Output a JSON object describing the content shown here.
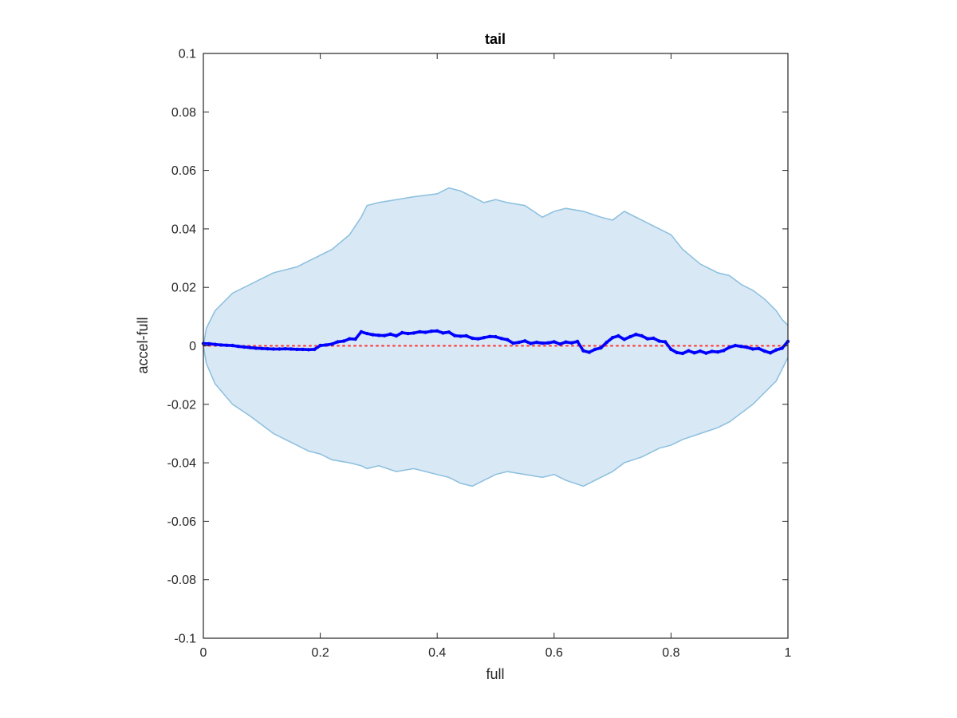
{
  "chart_data": {
    "type": "area",
    "title": "tail",
    "xlabel": "full",
    "ylabel": "accel-full",
    "xlim": [
      0,
      1
    ],
    "ylim": [
      -0.1,
      0.1
    ],
    "grid": false,
    "box": true,
    "x_ticks": [
      {
        "value": 0,
        "label": "0"
      },
      {
        "value": 0.2,
        "label": "0.2"
      },
      {
        "value": 0.4,
        "label": "0.4"
      },
      {
        "value": 0.6,
        "label": "0.6"
      },
      {
        "value": 0.8,
        "label": "0.8"
      },
      {
        "value": 1,
        "label": "1"
      }
    ],
    "y_ticks": [
      {
        "value": -0.1,
        "label": "-0.1"
      },
      {
        "value": -0.08,
        "label": "-0.08"
      },
      {
        "value": -0.06,
        "label": "-0.06"
      },
      {
        "value": -0.04,
        "label": "-0.04"
      },
      {
        "value": -0.02,
        "label": "-0.02"
      },
      {
        "value": 0,
        "label": "0"
      },
      {
        "value": 0.02,
        "label": "0.02"
      },
      {
        "value": 0.04,
        "label": "0.04"
      },
      {
        "value": 0.06,
        "label": "0.06"
      },
      {
        "value": 0.08,
        "label": "0.08"
      },
      {
        "value": 0.1,
        "label": "0.1"
      }
    ],
    "colors": {
      "band_fill": "#d8e8f4",
      "band_edge": "#8bbfdf",
      "points": "#0000ff",
      "reference_line": "#ff3333",
      "axes": "#262626"
    },
    "band": {
      "x": [
        0,
        0.005,
        0.02,
        0.05,
        0.08,
        0.1,
        0.12,
        0.14,
        0.16,
        0.18,
        0.2,
        0.22,
        0.25,
        0.27,
        0.28,
        0.3,
        0.33,
        0.36,
        0.4,
        0.42,
        0.44,
        0.46,
        0.48,
        0.5,
        0.52,
        0.55,
        0.58,
        0.6,
        0.62,
        0.65,
        0.68,
        0.7,
        0.72,
        0.75,
        0.78,
        0.8,
        0.82,
        0.85,
        0.88,
        0.9,
        0.92,
        0.94,
        0.96,
        0.97,
        0.98,
        0.99,
        1.0
      ],
      "upper": [
        0,
        0.006,
        0.012,
        0.018,
        0.021,
        0.023,
        0.025,
        0.026,
        0.027,
        0.029,
        0.031,
        0.033,
        0.038,
        0.044,
        0.048,
        0.049,
        0.05,
        0.051,
        0.052,
        0.054,
        0.053,
        0.051,
        0.049,
        0.05,
        0.049,
        0.048,
        0.044,
        0.046,
        0.047,
        0.046,
        0.044,
        0.043,
        0.046,
        0.043,
        0.04,
        0.038,
        0.033,
        0.028,
        0.025,
        0.024,
        0.021,
        0.019,
        0.016,
        0.014,
        0.012,
        0.009,
        0.007
      ],
      "lower": [
        0,
        -0.006,
        -0.013,
        -0.02,
        -0.024,
        -0.027,
        -0.03,
        -0.032,
        -0.034,
        -0.036,
        -0.037,
        -0.039,
        -0.04,
        -0.041,
        -0.042,
        -0.041,
        -0.043,
        -0.042,
        -0.044,
        -0.045,
        -0.047,
        -0.048,
        -0.046,
        -0.044,
        -0.043,
        -0.044,
        -0.045,
        -0.044,
        -0.046,
        -0.048,
        -0.045,
        -0.043,
        -0.04,
        -0.038,
        -0.035,
        -0.034,
        -0.032,
        -0.03,
        -0.028,
        -0.026,
        -0.023,
        -0.02,
        -0.016,
        -0.014,
        -0.012,
        -0.008,
        -0.004
      ]
    },
    "series": [
      {
        "type": "scatter",
        "x": [
          0,
          0.01,
          0.02,
          0.03,
          0.04,
          0.05,
          0.06,
          0.07,
          0.08,
          0.09,
          0.1,
          0.11,
          0.12,
          0.13,
          0.14,
          0.15,
          0.16,
          0.17,
          0.18,
          0.19,
          0.2,
          0.21,
          0.22,
          0.23,
          0.24,
          0.25,
          0.26,
          0.27,
          0.28,
          0.29,
          0.3,
          0.31,
          0.32,
          0.33,
          0.34,
          0.35,
          0.36,
          0.37,
          0.38,
          0.39,
          0.4,
          0.41,
          0.42,
          0.43,
          0.44,
          0.45,
          0.46,
          0.47,
          0.48,
          0.49,
          0.5,
          0.51,
          0.52,
          0.53,
          0.54,
          0.55,
          0.56,
          0.57,
          0.58,
          0.59,
          0.6,
          0.61,
          0.62,
          0.63,
          0.64,
          0.65,
          0.66,
          0.67,
          0.68,
          0.69,
          0.7,
          0.71,
          0.72,
          0.73,
          0.74,
          0.75,
          0.76,
          0.77,
          0.78,
          0.79,
          0.8,
          0.81,
          0.82,
          0.83,
          0.84,
          0.85,
          0.86,
          0.87,
          0.88,
          0.89,
          0.9,
          0.91,
          0.92,
          0.93,
          0.94,
          0.95,
          0.96,
          0.97,
          0.98,
          0.99,
          1.0
        ],
        "y": [
          0.0008,
          0.0007,
          0.0005,
          0.0003,
          0.0002,
          0.0001,
          -0.0002,
          -0.0004,
          -0.0006,
          -0.0008,
          -0.0009,
          -0.001,
          -0.0011,
          -0.0011,
          -0.001,
          -0.0011,
          -0.0012,
          -0.0012,
          -0.0013,
          -0.0012,
          0.0001,
          0.0003,
          0.0006,
          0.0014,
          0.0016,
          0.0024,
          0.0023,
          0.0048,
          0.0042,
          0.0038,
          0.0036,
          0.0035,
          0.004,
          0.0034,
          0.0045,
          0.0042,
          0.0044,
          0.0048,
          0.0046,
          0.005,
          0.0051,
          0.0044,
          0.0047,
          0.0035,
          0.0033,
          0.0034,
          0.0026,
          0.0024,
          0.0028,
          0.0032,
          0.0031,
          0.0025,
          0.0021,
          0.0009,
          0.0012,
          0.0017,
          0.0008,
          0.0012,
          0.0009,
          0.001,
          0.0014,
          0.0006,
          0.0013,
          0.001,
          0.0015,
          -0.0017,
          -0.0022,
          -0.0012,
          -0.0007,
          0.0012,
          0.0028,
          0.0034,
          0.0022,
          0.0031,
          0.0039,
          0.0034,
          0.0024,
          0.0026,
          0.0016,
          0.0014,
          -0.0012,
          -0.0023,
          -0.0026,
          -0.0017,
          -0.0024,
          -0.0018,
          -0.0025,
          -0.0019,
          -0.0021,
          -0.0016,
          -0.0005,
          0.0001,
          -0.0002,
          -0.0005,
          -0.0011,
          -0.0009,
          -0.0018,
          -0.0024,
          -0.0014,
          -0.0008,
          0.0015
        ]
      }
    ],
    "reference_line": {
      "y": 0,
      "style": "dotted"
    }
  }
}
